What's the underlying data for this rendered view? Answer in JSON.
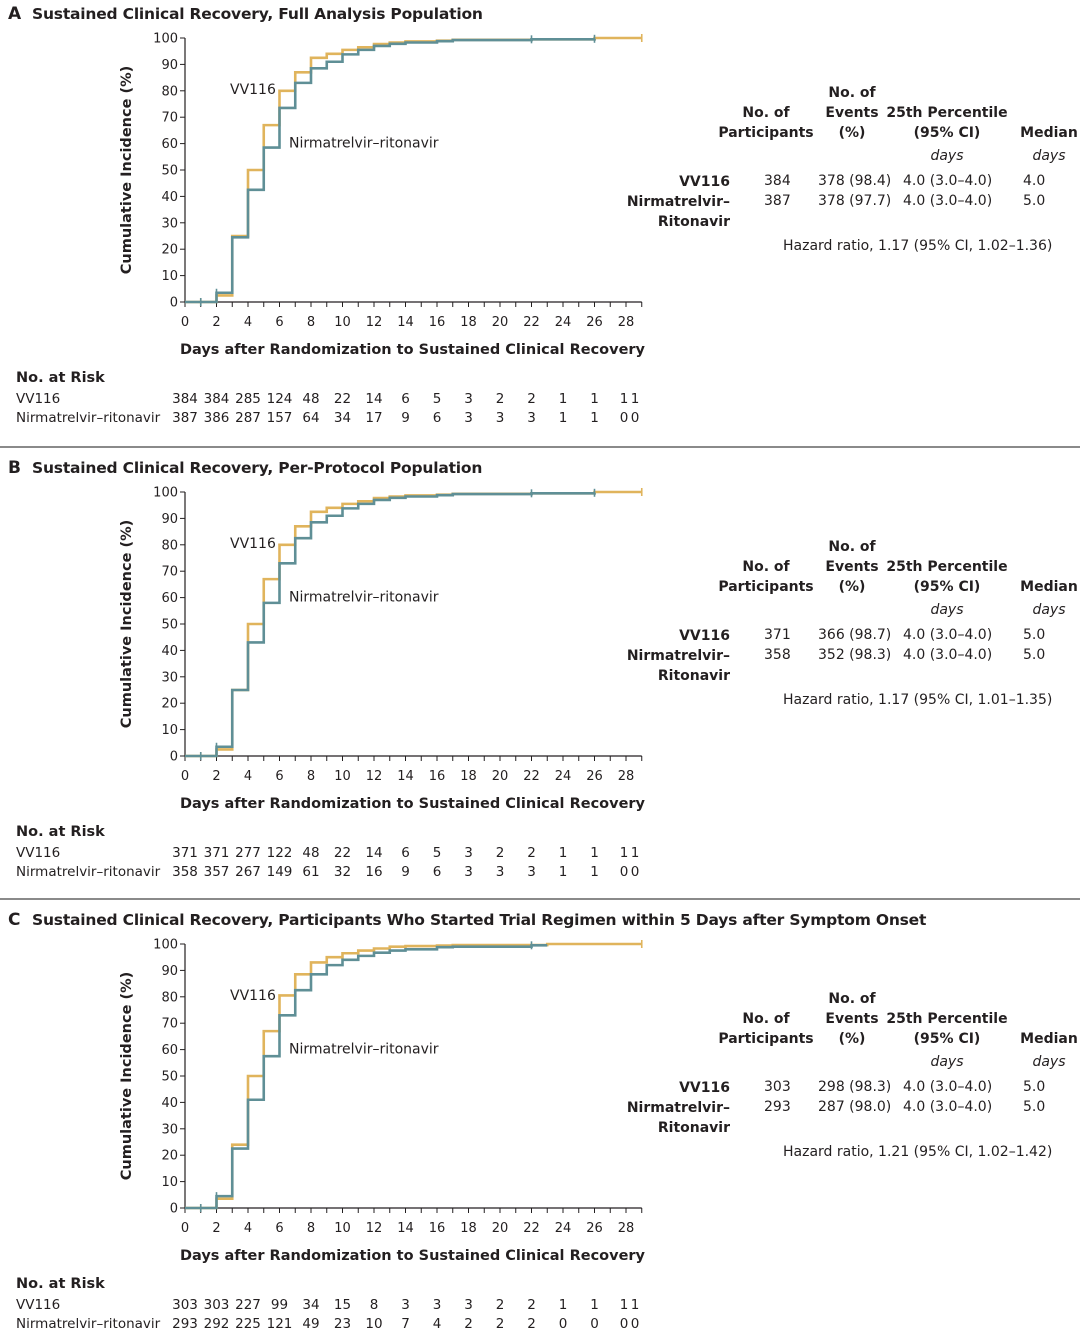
{
  "colors": {
    "vv116": "#e0b45c",
    "nirmatrelvir": "#5f8f96",
    "axis": "#231f20",
    "divider": "#8a8a8a"
  },
  "stats_headers": {
    "participants": [
      "No. of",
      "Participants"
    ],
    "events": [
      "No. of",
      "Events",
      "(%)"
    ],
    "percentile": [
      "25th Percentile",
      "(95% CI)"
    ],
    "median": [
      "Median"
    ],
    "unit_percentile": "days",
    "unit_median": "days"
  },
  "risk_title": "No. at Risk",
  "panels": [
    {
      "letter": "A",
      "title": "Sustained Clinical Recovery, Full Analysis Population",
      "stats": {
        "rows": [
          {
            "name": [
              "VV116"
            ],
            "participants": "384",
            "events": "378 (98.4)",
            "percentile": "4.0 (3.0–4.0)",
            "median": "4.0"
          },
          {
            "name": [
              "Nirmatrelvir–",
              "Ritonavir"
            ],
            "participants": "387",
            "events": "378 (97.7)",
            "percentile": "4.0 (3.0–4.0)",
            "median": "5.0"
          }
        ],
        "hazard_ratio": "Hazard ratio, 1.17 (95% CI, 1.02–1.36)"
      },
      "risk": [
        {
          "name": "VV116",
          "values": [
            "384",
            "384",
            "285",
            "124",
            "48",
            "22",
            "14",
            "6",
            "5",
            "3",
            "2",
            "2",
            "1",
            "1",
            "1",
            "1"
          ]
        },
        {
          "name": "Nirmatrelvir–ritonavir",
          "values": [
            "387",
            "386",
            "287",
            "157",
            "64",
            "34",
            "17",
            "9",
            "6",
            "3",
            "3",
            "3",
            "1",
            "1",
            "0",
            "0"
          ]
        }
      ]
    },
    {
      "letter": "B",
      "title": "Sustained Clinical Recovery, Per-Protocol Population",
      "stats": {
        "rows": [
          {
            "name": [
              "VV116"
            ],
            "participants": "371",
            "events": "366 (98.7)",
            "percentile": "4.0 (3.0–4.0)",
            "median": "5.0"
          },
          {
            "name": [
              "Nirmatrelvir–",
              "Ritonavir"
            ],
            "participants": "358",
            "events": "352 (98.3)",
            "percentile": "4.0 (3.0–4.0)",
            "median": "5.0"
          }
        ],
        "hazard_ratio": "Hazard ratio, 1.17 (95% CI, 1.01–1.35)"
      },
      "risk": [
        {
          "name": "VV116",
          "values": [
            "371",
            "371",
            "277",
            "122",
            "48",
            "22",
            "14",
            "6",
            "5",
            "3",
            "2",
            "2",
            "1",
            "1",
            "1",
            "1"
          ]
        },
        {
          "name": "Nirmatrelvir–ritonavir",
          "values": [
            "358",
            "357",
            "267",
            "149",
            "61",
            "32",
            "16",
            "9",
            "6",
            "3",
            "3",
            "3",
            "1",
            "1",
            "0",
            "0"
          ]
        }
      ]
    },
    {
      "letter": "C",
      "title": "Sustained Clinical Recovery, Participants Who Started Trial Regimen within 5 Days after Symptom Onset",
      "stats": {
        "rows": [
          {
            "name": [
              "VV116"
            ],
            "participants": "303",
            "events": "298 (98.3)",
            "percentile": "4.0 (3.0–4.0)",
            "median": "5.0"
          },
          {
            "name": [
              "Nirmatrelvir–",
              "Ritonavir"
            ],
            "participants": "293",
            "events": "287 (98.0)",
            "percentile": "4.0 (3.0–4.0)",
            "median": "5.0"
          }
        ],
        "hazard_ratio": "Hazard ratio, 1.21 (95% CI, 1.02–1.42)"
      },
      "risk": [
        {
          "name": "VV116",
          "values": [
            "303",
            "303",
            "227",
            "99",
            "34",
            "15",
            "8",
            "3",
            "3",
            "3",
            "2",
            "2",
            "1",
            "1",
            "1",
            "1"
          ]
        },
        {
          "name": "Nirmatrelvir–ritonavir",
          "values": [
            "293",
            "292",
            "225",
            "121",
            "49",
            "23",
            "10",
            "7",
            "4",
            "2",
            "2",
            "2",
            "0",
            "0",
            "0",
            "0"
          ]
        }
      ]
    }
  ],
  "chart_data": [
    {
      "type": "line",
      "step": true,
      "title": "A  Sustained Clinical Recovery, Full Analysis Population",
      "xlabel": "Days after Randomization to Sustained Clinical Recovery",
      "ylabel": "Cumulative Incidence (%)",
      "xlim": [
        0,
        29
      ],
      "ylim": [
        0,
        100
      ],
      "xticks": [
        0,
        2,
        4,
        6,
        8,
        10,
        12,
        14,
        16,
        18,
        20,
        22,
        24,
        26,
        28
      ],
      "yticks": [
        0,
        10,
        20,
        30,
        40,
        50,
        60,
        70,
        80,
        90,
        100
      ],
      "risk_x": [
        0,
        2,
        4,
        6,
        8,
        10,
        12,
        14,
        16,
        18,
        20,
        22,
        24,
        26,
        28,
        29
      ],
      "grid": false,
      "series": [
        {
          "name": "VV116",
          "label": "VV116",
          "color": "#e0b45c",
          "x": [
            0,
            2,
            3,
            4,
            5,
            6,
            7,
            8,
            9,
            10,
            11,
            12,
            13,
            14,
            16,
            17,
            22,
            26,
            29
          ],
          "y": [
            0,
            2.5,
            25,
            50,
            67,
            80,
            87,
            92.5,
            94,
            95.5,
            96.5,
            97.7,
            98.3,
            98.7,
            99,
            99.3,
            99.5,
            100,
            100
          ],
          "censor_x": [
            1,
            2,
            29
          ]
        },
        {
          "name": "Nirmatrelvir–ritonavir",
          "label": "Nirmatrelvir–ritonavir",
          "color": "#5f8f96",
          "x": [
            0,
            2,
            3,
            4,
            5,
            6,
            7,
            8,
            9,
            10,
            11,
            12,
            13,
            14,
            16,
            17,
            22,
            26
          ],
          "y": [
            0,
            3.5,
            24.5,
            42.5,
            58.5,
            73.5,
            83,
            88.5,
            91,
            93.8,
            95.5,
            97,
            97.8,
            98.3,
            98.8,
            99.2,
            99.5,
            99.7
          ],
          "censor_x": [
            1,
            2,
            22,
            26
          ]
        }
      ]
    },
    {
      "type": "line",
      "step": true,
      "title": "B  Sustained Clinical Recovery, Per-Protocol Population",
      "xlabel": "Days after Randomization to Sustained Clinical Recovery",
      "ylabel": "Cumulative Incidence (%)",
      "xlim": [
        0,
        29
      ],
      "ylim": [
        0,
        100
      ],
      "xticks": [
        0,
        2,
        4,
        6,
        8,
        10,
        12,
        14,
        16,
        18,
        20,
        22,
        24,
        26,
        28
      ],
      "yticks": [
        0,
        10,
        20,
        30,
        40,
        50,
        60,
        70,
        80,
        90,
        100
      ],
      "risk_x": [
        0,
        2,
        4,
        6,
        8,
        10,
        12,
        14,
        16,
        18,
        20,
        22,
        24,
        26,
        28,
        29
      ],
      "grid": false,
      "series": [
        {
          "name": "VV116",
          "label": "VV116",
          "color": "#e0b45c",
          "x": [
            0,
            2,
            3,
            4,
            5,
            6,
            7,
            8,
            9,
            10,
            11,
            12,
            13,
            14,
            16,
            17,
            22,
            26,
            29
          ],
          "y": [
            0,
            2.5,
            25,
            50,
            67,
            80,
            87,
            92.5,
            94,
            95.5,
            96.5,
            97.7,
            98.3,
            98.7,
            99,
            99.3,
            99.5,
            100,
            100
          ],
          "censor_x": [
            1,
            2,
            29
          ]
        },
        {
          "name": "Nirmatrelvir–ritonavir",
          "label": "Nirmatrelvir–ritonavir",
          "color": "#5f8f96",
          "x": [
            0,
            2,
            3,
            4,
            5,
            6,
            7,
            8,
            9,
            10,
            11,
            12,
            13,
            14,
            16,
            17,
            22,
            26
          ],
          "y": [
            0,
            3.5,
            25,
            43,
            58,
            73,
            82.5,
            88.5,
            91,
            93.8,
            95.5,
            97,
            97.8,
            98.3,
            98.8,
            99.2,
            99.5,
            99.7
          ],
          "censor_x": [
            1,
            2,
            22,
            26
          ]
        }
      ]
    },
    {
      "type": "line",
      "step": true,
      "title": "C  Sustained Clinical Recovery, Participants Who Started Trial Regimen within 5 Days after Symptom Onset",
      "xlabel": "Days after Randomization to Sustained Clinical Recovery",
      "ylabel": "Cumulative Incidence (%)",
      "xlim": [
        0,
        29
      ],
      "ylim": [
        0,
        100
      ],
      "xticks": [
        0,
        2,
        4,
        6,
        8,
        10,
        12,
        14,
        16,
        18,
        20,
        22,
        24,
        26,
        28
      ],
      "yticks": [
        0,
        10,
        20,
        30,
        40,
        50,
        60,
        70,
        80,
        90,
        100
      ],
      "risk_x": [
        0,
        2,
        4,
        6,
        8,
        10,
        12,
        14,
        16,
        18,
        20,
        22,
        24,
        26,
        28,
        29
      ],
      "grid": false,
      "series": [
        {
          "name": "VV116",
          "label": "VV116",
          "color": "#e0b45c",
          "x": [
            0,
            2,
            3,
            4,
            5,
            6,
            7,
            8,
            9,
            10,
            11,
            12,
            13,
            14,
            16,
            17,
            23,
            29
          ],
          "y": [
            0,
            3.5,
            24,
            50,
            67,
            80.5,
            88.5,
            93,
            95,
            96.5,
            97.5,
            98.3,
            99,
            99.2,
            99.4,
            99.6,
            100,
            100
          ],
          "censor_x": [
            1,
            2,
            29
          ]
        },
        {
          "name": "Nirmatrelvir–ritonavir",
          "label": "Nirmatrelvir–ritonavir",
          "color": "#5f8f96",
          "x": [
            0,
            2,
            3,
            4,
            5,
            6,
            7,
            8,
            9,
            10,
            11,
            12,
            13,
            14,
            16,
            17,
            22,
            23
          ],
          "y": [
            0,
            4.5,
            22.5,
            41,
            57.5,
            73,
            82.5,
            88.5,
            92,
            94,
            95.5,
            96.7,
            97.5,
            98,
            98.8,
            99,
            99.5,
            99.5
          ],
          "censor_x": [
            1,
            2,
            22
          ]
        }
      ]
    }
  ]
}
